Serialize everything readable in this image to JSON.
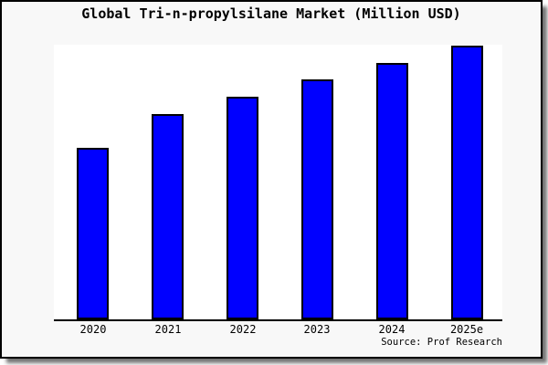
{
  "header": {
    "title": "Global Tri-n-propylsilane Market (Million USD)"
  },
  "footer": {
    "source_label": "Source: Prof Research"
  },
  "colors": {
    "bar_fill": "#0000ff",
    "bar_edge": "#000000",
    "card_background": "#f8f8f8",
    "plot_background": "#ffffff",
    "frame": "#000000",
    "text": "#000000"
  },
  "chart_data": {
    "type": "bar",
    "title": "Global Tri-n-propylsilane Market (Million USD)",
    "categories": [
      "2020",
      "2021",
      "2022",
      "2023",
      "2024",
      "2025e"
    ],
    "values": [
      100,
      119.6,
      129.6,
      139.7,
      149.2,
      159.3
    ],
    "units": "relative index estimated from bar heights (no y-axis labels shown; 2020 = 100)",
    "xlabel": "",
    "ylabel": "",
    "ylim": [
      0,
      160
    ],
    "grid": false,
    "legend": null,
    "x_axis_line": true,
    "y_axis_line": false,
    "source": "Source: Prof Research"
  }
}
